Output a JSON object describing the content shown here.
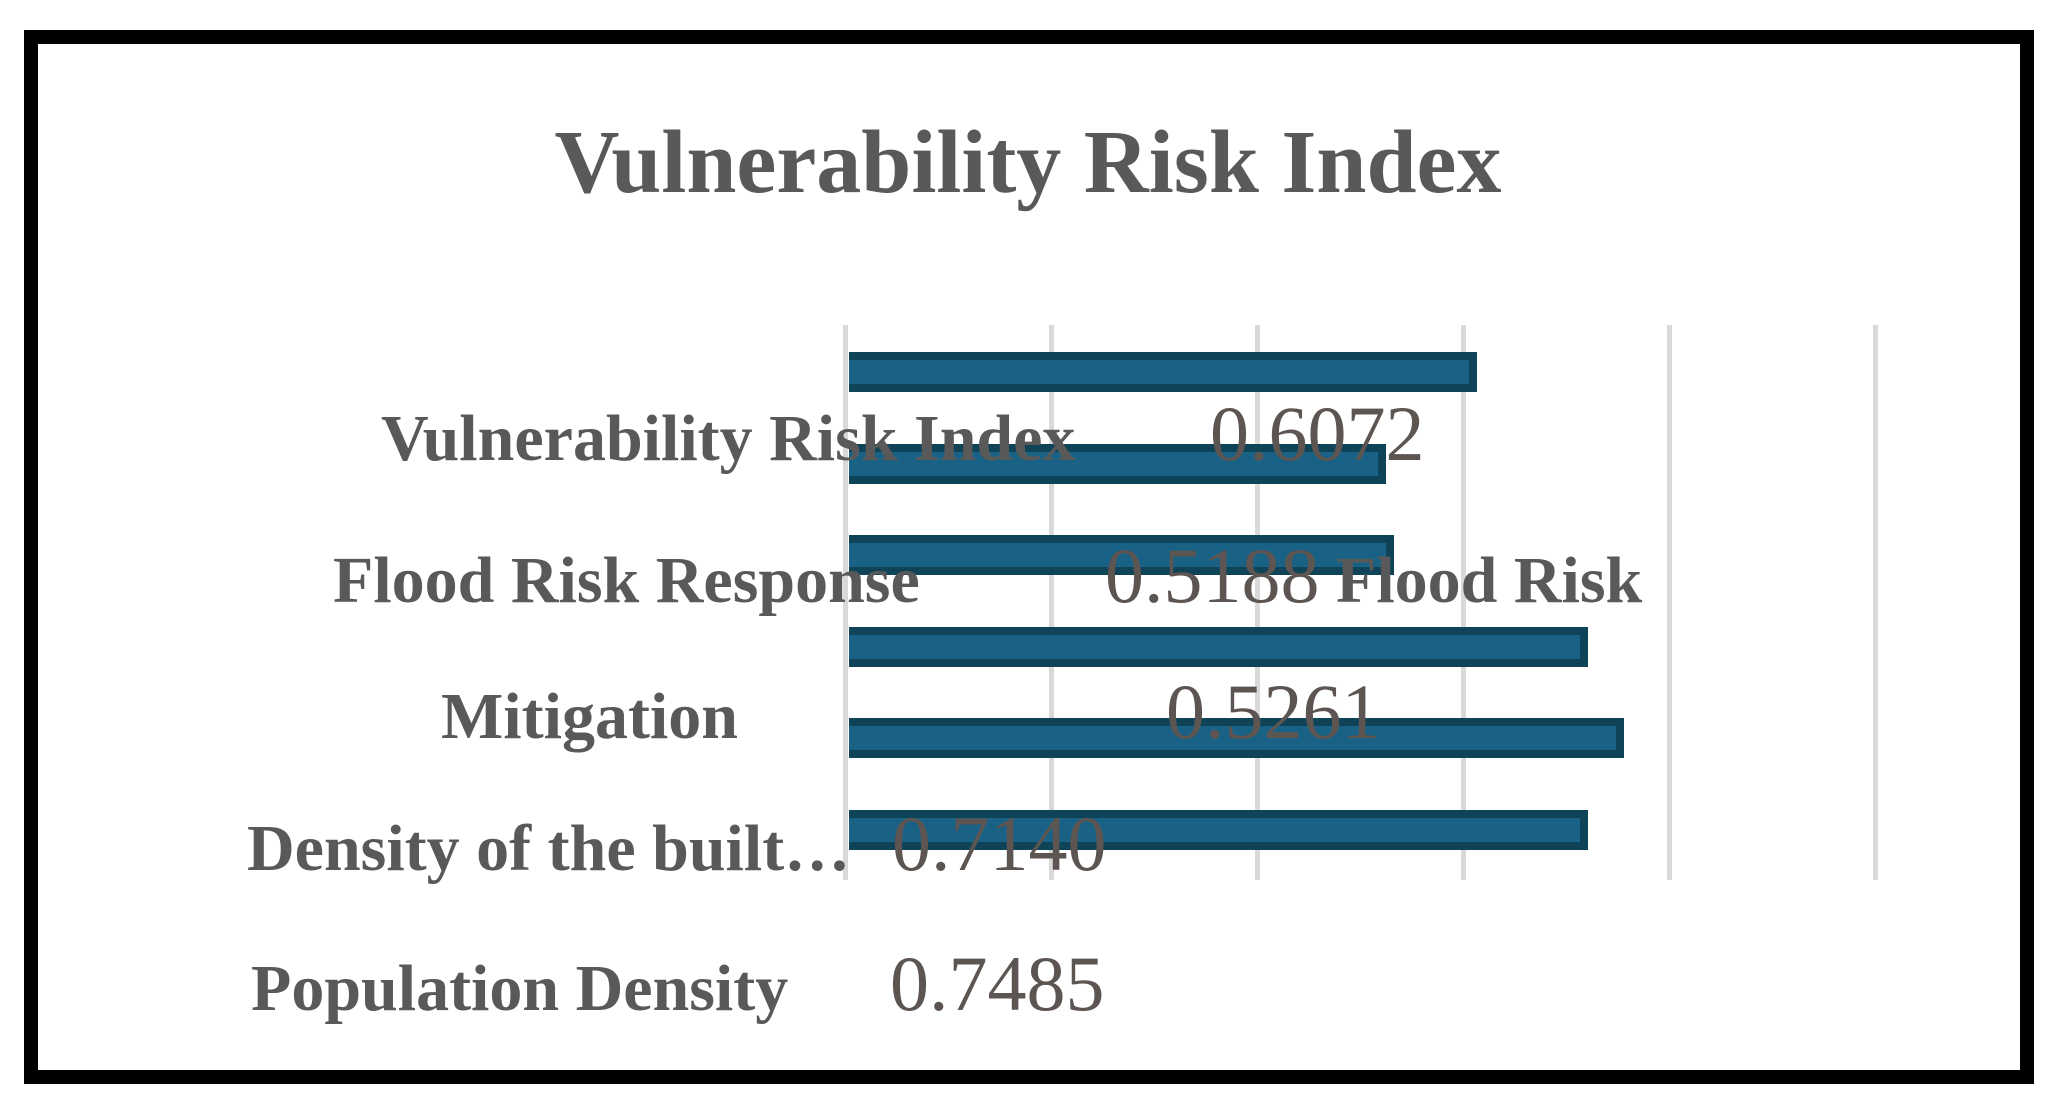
{
  "title": "Vulnerability Risk Index",
  "rows": [
    {
      "label": "Vulnerability Risk Index",
      "value": "0.6072"
    },
    {
      "label": "Flood Risk Response",
      "value": "0.5188",
      "overflow": "Flood Risk"
    },
    {
      "label": "Mitigation",
      "value": "0.5261"
    },
    {
      "label": "Density of the built…",
      "value": "0.7140"
    },
    {
      "label": "Population Density",
      "value": "0.7485"
    }
  ],
  "chart_data": {
    "type": "bar",
    "orientation": "horizontal",
    "title": "Vulnerability Risk Index",
    "categories": [
      "Vulnerability Risk Index",
      "Flood Risk Response",
      "Flood Risk Mitigation",
      "Density of the built…",
      "Population Density",
      ""
    ],
    "values": [
      0.6072,
      0.5188,
      0.5261,
      0.714,
      0.7485,
      0.714
    ],
    "value_labels": [
      "0.6072",
      "0.5188",
      "0.5261",
      "0.7140",
      "0.7485",
      ""
    ],
    "note": "Six bars are visible; the sixth bar's label row falls below the cropped image. Category labels are vertically offset from their bars in the source image.",
    "xlabel": "",
    "ylabel": "",
    "xlim": [
      0,
      1.0
    ],
    "grid_step": 0.2,
    "grid": true,
    "legend": false,
    "colors": {
      "bar_fill": "#1a6285",
      "bar_edge": "#0f4458",
      "gridline": "#d9d9d9",
      "label_text": "#595959",
      "number_text": "#5c5552",
      "title_text": "#595959",
      "frame": "#000000",
      "background": "#ffffff"
    }
  }
}
